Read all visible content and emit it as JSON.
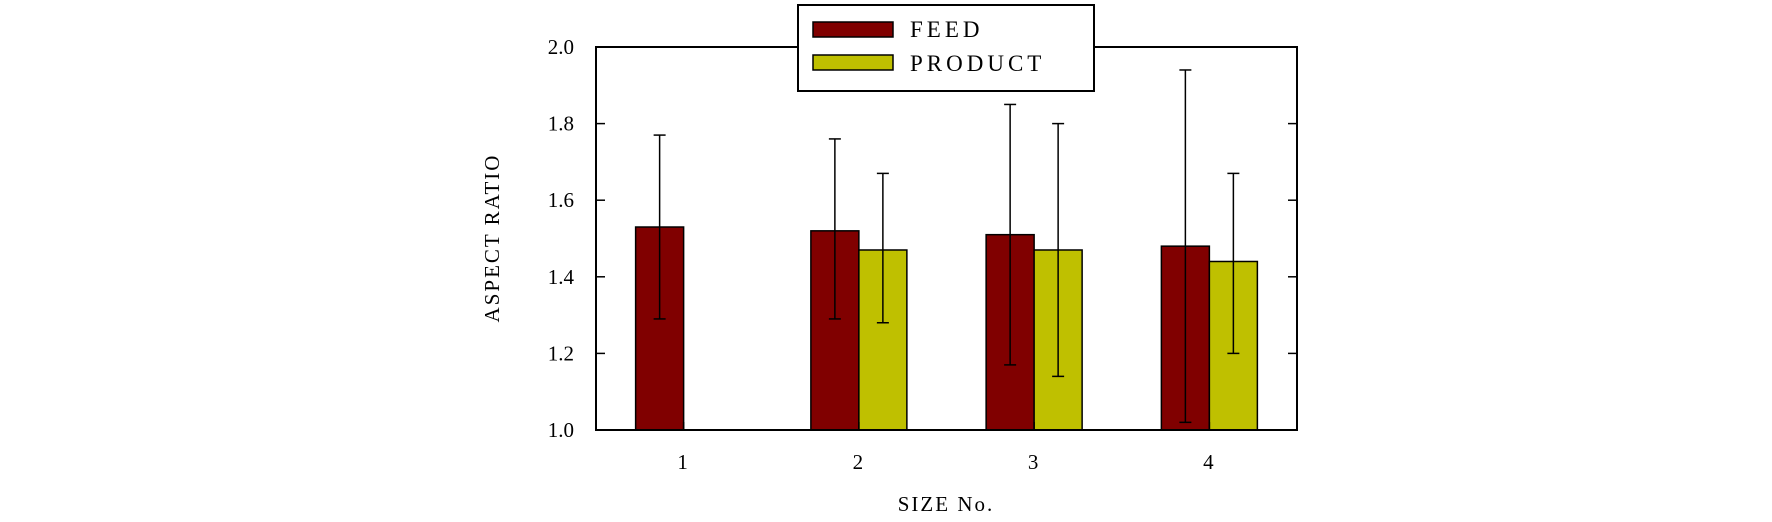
{
  "chart_data": {
    "type": "bar",
    "title": "",
    "xlabel": "SIZE No.",
    "ylabel": "ASPECT RATIO",
    "categories": [
      "1",
      "2",
      "3",
      "4"
    ],
    "ylim": [
      1.0,
      2.0
    ],
    "yticks": [
      "1.0",
      "1.2",
      "1.4",
      "1.6",
      "1.8",
      "2.0"
    ],
    "grid": false,
    "legend_position": "top-center",
    "series": [
      {
        "name": "FEED",
        "color": "#800000",
        "values": [
          1.53,
          1.52,
          1.51,
          1.48
        ],
        "error_high": [
          1.77,
          1.76,
          1.85,
          1.94
        ],
        "error_low": [
          1.29,
          1.29,
          1.17,
          1.02
        ]
      },
      {
        "name": "PRODUCT",
        "color": "#BFC000",
        "values": [
          null,
          1.47,
          1.47,
          1.44
        ],
        "error_high": [
          null,
          1.67,
          1.8,
          1.67
        ],
        "error_low": [
          null,
          1.28,
          1.14,
          1.2
        ]
      }
    ]
  }
}
